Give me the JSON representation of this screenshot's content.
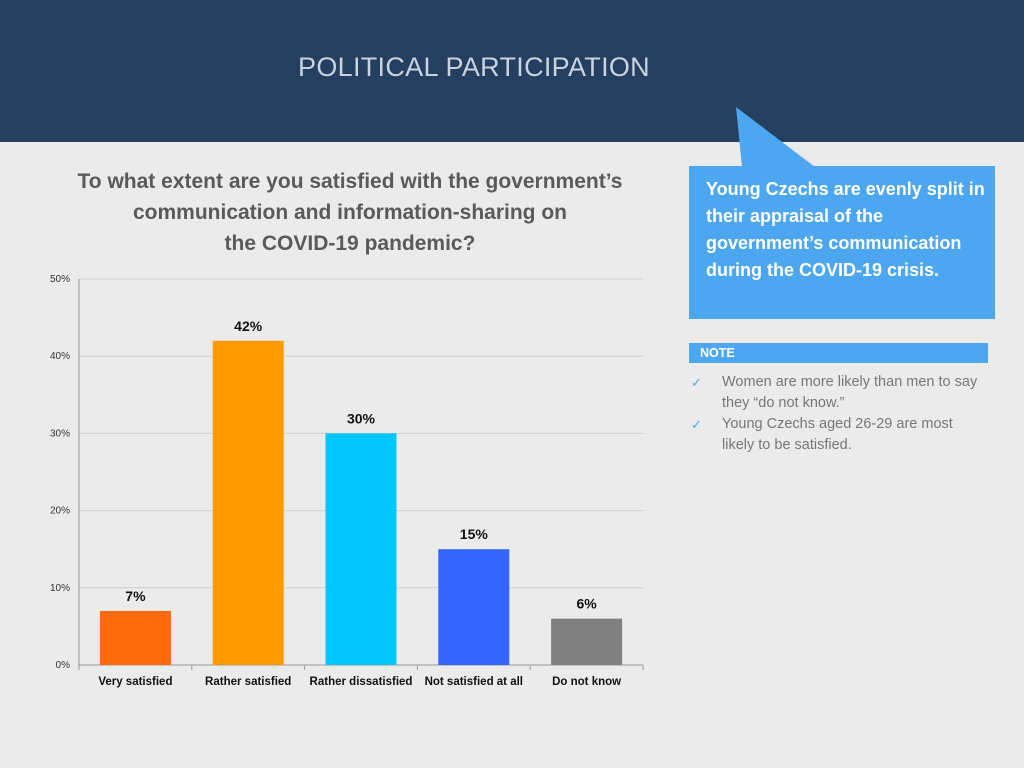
{
  "header": {
    "title": "POLITICAL PARTICIPATION"
  },
  "question": {
    "lines": [
      "To what extent are you satisfied with the government’s",
      "communication and information-sharing on",
      "the COVID-19 pandemic?"
    ]
  },
  "callout": {
    "text": "Young Czechs are evenly split in their appraisal of the government’s communication during the COVID-19 crisis."
  },
  "note": {
    "label": "NOTE",
    "items": [
      "Women are more likely than men to say they “do not know.”",
      "Young Czechs aged 26-29 are most likely to be satisfied."
    ]
  },
  "colors": {
    "header_bg": "#243f5f",
    "accent": "#4da6f0",
    "bar_colors": [
      "#ff6a0a",
      "#ff9a00",
      "#00c8ff",
      "#3366ff",
      "#808080"
    ]
  },
  "chart_data": {
    "type": "bar",
    "title": "To what extent are you satisfied with the government’s communication and information-sharing on the COVID-19 pandemic?",
    "categories": [
      "Very satisfied",
      "Rather satisfied",
      "Rather dissatisfied",
      "Not satisfied at all",
      "Do not know"
    ],
    "values": [
      7,
      42,
      30,
      15,
      6
    ],
    "data_labels": [
      "7%",
      "42%",
      "30%",
      "15%",
      "6%"
    ],
    "yticks": [
      0,
      10,
      20,
      30,
      40,
      50
    ],
    "ytick_labels": [
      "0%",
      "10%",
      "20%",
      "30%",
      "40%",
      "50%"
    ],
    "ylim": [
      0,
      50
    ],
    "xlabel": "",
    "ylabel": "",
    "grid": true,
    "legend": "none"
  }
}
